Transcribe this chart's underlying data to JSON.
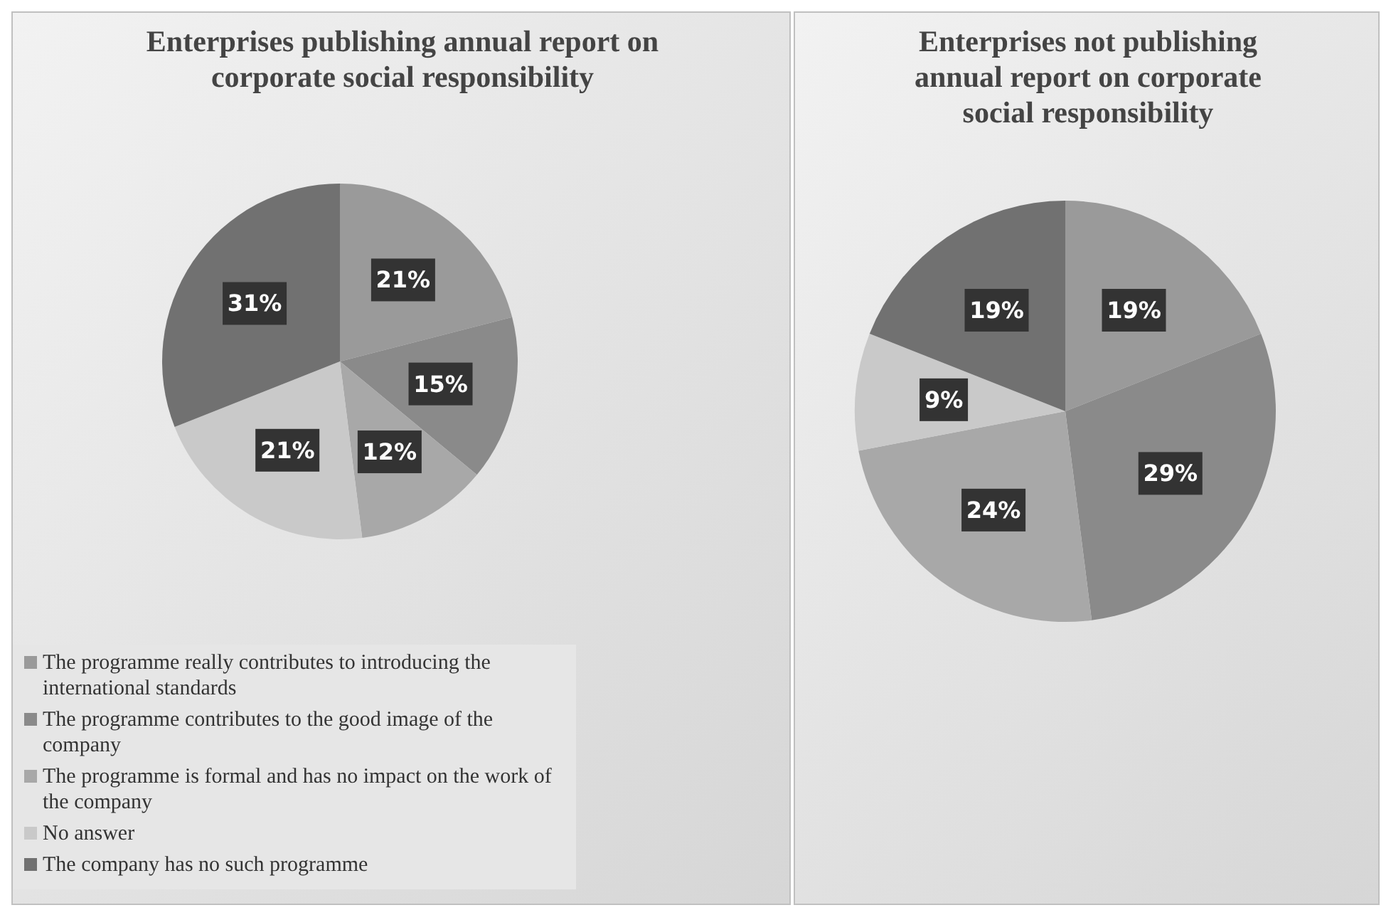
{
  "chart_data": [
    {
      "type": "pie",
      "title": "Enterprises publishing annual report on corporate social responsibility",
      "categories": [
        "The programme really contributes to introducing the international standards",
        "The programme contributes to the good image of the company",
        "The programme is formal and has no impact on the work of the company",
        "No answer",
        "The company has no such programme"
      ],
      "values": [
        21,
        15,
        12,
        21,
        31
      ],
      "colors": [
        "#9a9a9a",
        "#8a8a8a",
        "#a8a8a8",
        "#c9c9c9",
        "#717171"
      ],
      "value_labels": [
        "21%",
        "15%",
        "12%",
        "21%",
        "31%"
      ],
      "legend": "bottom"
    },
    {
      "type": "pie",
      "title": "Enterprises not publishing annual report on corporate social responsibility",
      "categories": [
        null,
        null,
        null,
        null,
        null
      ],
      "values": [
        19,
        29,
        24,
        9,
        19
      ],
      "colors": [
        "#9a9a9a",
        "#8a8a8a",
        "#a8a8a8",
        "#c9c9c9",
        "#717171"
      ],
      "value_labels": [
        "19%",
        "29%",
        "24%",
        "9%",
        "19%"
      ],
      "legend": false
    }
  ]
}
